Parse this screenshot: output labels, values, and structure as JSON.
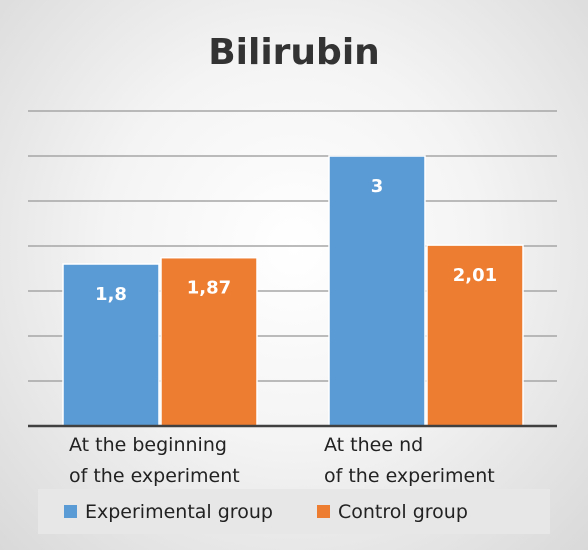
{
  "chart_data": {
    "type": "bar",
    "title": "Bilirubin",
    "xlabel": "",
    "ylabel": "",
    "categories": [
      [
        "At the beginning",
        "of the experiment"
      ],
      [
        "At thee nd",
        "of the experiment"
      ]
    ],
    "series": [
      {
        "name": "Experimental group",
        "color": "#5b9bd5",
        "values": [
          1.8,
          3
        ],
        "labels": [
          "1,8",
          "3"
        ]
      },
      {
        "name": "Control group",
        "color": "#ed7d31",
        "values": [
          1.87,
          2.01
        ],
        "labels": [
          "1,87",
          "2,01"
        ]
      }
    ],
    "ylim": [
      0,
      3.5
    ],
    "yticks": [
      0,
      0.5,
      1,
      1.5,
      2,
      2.5,
      3,
      3.5
    ],
    "show_y_tick_labels": false,
    "grid": true,
    "legend": "bottom"
  }
}
